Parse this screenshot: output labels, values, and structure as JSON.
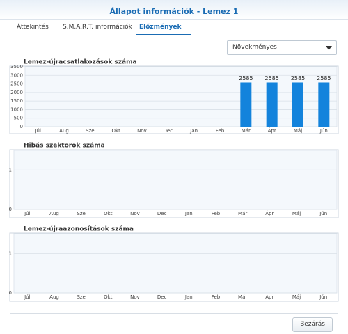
{
  "header": {
    "title": "Állapot információk - Lemez 1"
  },
  "tabs": [
    "Áttekintés",
    "S.M.A.R.T. információk",
    "Előzmények"
  ],
  "active_tab": 2,
  "dropdown": "Növekményes",
  "button": "Bezárás",
  "chart_data": [
    {
      "type": "bar",
      "title": "Lemez-újracsatlakozások száma",
      "categories": [
        "Júl",
        "Aug",
        "Sze",
        "Okt",
        "Nov",
        "Dec",
        "Jan",
        "Feb",
        "Már",
        "Ápr",
        "Máj",
        "Jún"
      ],
      "values": [
        null,
        null,
        null,
        null,
        null,
        null,
        null,
        null,
        2585,
        2585,
        2585,
        2585
      ],
      "color": "#1383dc",
      "ylim": [
        0,
        3500
      ],
      "yticks": [
        0,
        500,
        1000,
        1500,
        2000,
        2500,
        3000,
        3500
      ],
      "grid": true
    },
    {
      "type": "bar",
      "title": "Hibás szektorok száma",
      "categories": [
        "Júl",
        "Aug",
        "Sze",
        "Okt",
        "Nov",
        "Dec",
        "Jan",
        "Feb",
        "Már",
        "Ápr",
        "Máj",
        "Jún"
      ],
      "values": [
        null,
        null,
        null,
        null,
        null,
        null,
        null,
        null,
        null,
        null,
        null,
        null
      ],
      "color": "#1383dc",
      "ylim": [
        0,
        1.5
      ],
      "yticks": [
        0,
        1
      ],
      "grid": true
    },
    {
      "type": "bar",
      "title": "Lemez-újraazonosítások száma",
      "categories": [
        "Júl",
        "Aug",
        "Sze",
        "Okt",
        "Nov",
        "Dec",
        "Jan",
        "Feb",
        "Már",
        "Ápr",
        "Máj",
        "Jún"
      ],
      "values": [
        null,
        null,
        null,
        null,
        null,
        null,
        null,
        null,
        null,
        null,
        null,
        null
      ],
      "color": "#1383dc",
      "ylim": [
        0,
        1.5
      ],
      "yticks": [
        0,
        1
      ],
      "grid": true
    }
  ]
}
